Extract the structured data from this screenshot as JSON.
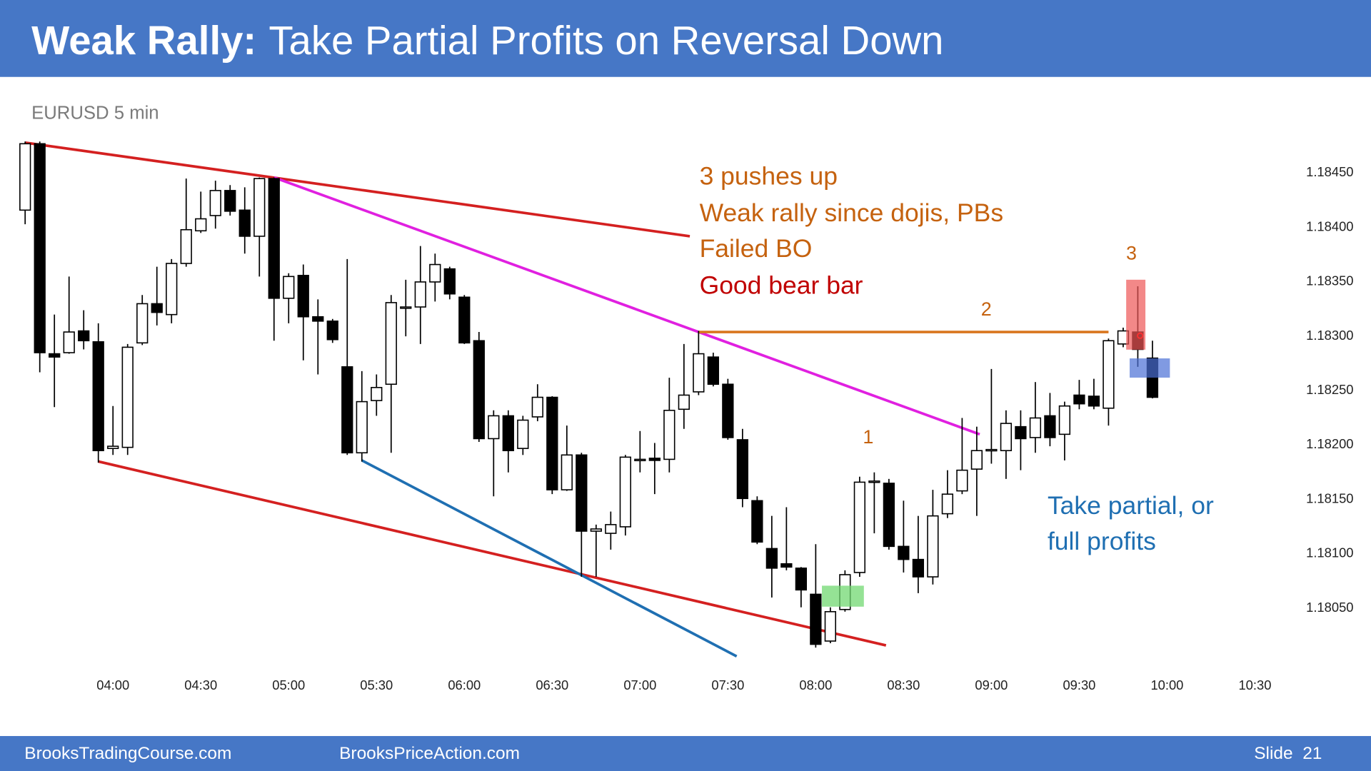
{
  "title": {
    "bold": "Weak Rally:",
    "rest": "Take Partial Profits on Reversal Down"
  },
  "chart_data": {
    "type": "candlestick",
    "subtitle": "EURUSD 5 min",
    "x": [
      "03:30",
      "03:35",
      "03:40",
      "03:45",
      "03:50",
      "03:55",
      "04:00",
      "04:05",
      "04:10",
      "04:15",
      "04:20",
      "04:25",
      "04:30",
      "04:35",
      "04:40",
      "04:45",
      "04:50",
      "04:55",
      "05:00",
      "05:05",
      "05:10",
      "05:15",
      "05:20",
      "05:25",
      "05:30",
      "05:35",
      "05:40",
      "05:45",
      "05:50",
      "05:55",
      "06:00",
      "06:05",
      "06:10",
      "06:15",
      "06:20",
      "06:25",
      "06:30",
      "06:35",
      "06:40",
      "06:45",
      "06:50",
      "06:55",
      "07:00",
      "07:05",
      "07:10",
      "07:15",
      "07:20",
      "07:25",
      "07:30",
      "07:35",
      "07:40",
      "07:45",
      "07:50",
      "07:55",
      "08:00",
      "08:05",
      "08:10",
      "08:15",
      "08:20",
      "08:25",
      "08:30",
      "08:35",
      "08:40",
      "08:45",
      "08:50",
      "08:55",
      "09:00",
      "09:05",
      "09:10",
      "09:15",
      "09:20",
      "09:25",
      "09:30",
      "09:35",
      "09:40",
      "09:45",
      "09:50",
      "09:55"
    ],
    "open": [
      1.18415,
      1.18476,
      1.18283,
      1.18284,
      1.18304,
      1.18294,
      1.18196,
      1.18197,
      1.18293,
      1.18329,
      1.18319,
      1.18366,
      1.18396,
      1.1841,
      1.18433,
      1.18415,
      1.18391,
      1.18444,
      1.18334,
      1.18355,
      1.18317,
      1.18313,
      1.18271,
      1.18192,
      1.1824,
      1.18255,
      1.18325,
      1.18326,
      1.18349,
      1.18361,
      1.18335,
      1.18295,
      1.18205,
      1.18226,
      1.18196,
      1.18225,
      1.18243,
      1.18158,
      1.1819,
      1.1812,
      1.18118,
      1.18124,
      1.18185,
      1.18187,
      1.18186,
      1.18232,
      1.18248,
      1.1828,
      1.18255,
      1.18204,
      1.18148,
      1.18104,
      1.1809,
      1.18086,
      1.18062,
      1.18019,
      1.18048,
      1.18082,
      1.18165,
      1.18164,
      1.18106,
      1.18094,
      1.18078,
      1.18136,
      1.18157,
      1.18177,
      1.18194,
      1.18194,
      1.18216,
      1.18206,
      1.18226,
      1.18209,
      1.18245,
      1.18244,
      1.18233,
      1.18292,
      1.18303,
      1.18279
    ],
    "high": [
      1.18478,
      1.18478,
      1.18319,
      1.18354,
      1.18323,
      1.18311,
      1.18235,
      1.18292,
      1.18337,
      1.18363,
      1.1837,
      1.18444,
      1.18432,
      1.18442,
      1.18438,
      1.18436,
      1.18445,
      1.18445,
      1.18357,
      1.18365,
      1.18333,
      1.18315,
      1.1837,
      1.18267,
      1.18264,
      1.18337,
      1.18351,
      1.18382,
      1.18375,
      1.18363,
      1.18337,
      1.18303,
      1.18231,
      1.18231,
      1.18226,
      1.18255,
      1.18244,
      1.18217,
      1.18192,
      1.18126,
      1.18138,
      1.1819,
      1.18212,
      1.18201,
      1.18261,
      1.18292,
      1.18304,
      1.18284,
      1.1826,
      1.18214,
      1.18152,
      1.18134,
      1.18142,
      1.18087,
      1.18108,
      1.1805,
      1.18084,
      1.1817,
      1.18174,
      1.18168,
      1.18148,
      1.18134,
      1.18158,
      1.18176,
      1.18224,
      1.18216,
      1.18269,
      1.18231,
      1.18231,
      1.18257,
      1.18247,
      1.18239,
      1.18259,
      1.1826,
      1.18297,
      1.18307,
      1.18345,
      1.18295
    ],
    "low": [
      1.18402,
      1.18266,
      1.18234,
      1.18283,
      1.18287,
      1.18183,
      1.1819,
      1.1819,
      1.18291,
      1.18309,
      1.18311,
      1.18363,
      1.18394,
      1.18398,
      1.1841,
      1.18375,
      1.18354,
      1.18295,
      1.18311,
      1.18277,
      1.18264,
      1.18293,
      1.1819,
      1.18184,
      1.18226,
      1.18192,
      1.18299,
      1.18292,
      1.18331,
      1.18333,
      1.18292,
      1.18202,
      1.18152,
      1.18174,
      1.1819,
      1.18221,
      1.18154,
      1.18157,
      1.18078,
      1.18078,
      1.18103,
      1.18116,
      1.18174,
      1.18154,
      1.18174,
      1.18214,
      1.18245,
      1.18253,
      1.18204,
      1.18142,
      1.18108,
      1.18059,
      1.18084,
      1.1805,
      1.18013,
      1.18017,
      1.18046,
      1.18078,
      1.18118,
      1.18103,
      1.18082,
      1.18063,
      1.18071,
      1.18132,
      1.18154,
      1.18134,
      1.18182,
      1.18168,
      1.18176,
      1.18192,
      1.18198,
      1.18185,
      1.18232,
      1.18232,
      1.18217,
      1.18289,
      1.18271,
      1.18242
    ],
    "close": [
      1.18476,
      1.18284,
      1.1828,
      1.18303,
      1.18295,
      1.18194,
      1.18198,
      1.18289,
      1.18329,
      1.18321,
      1.18366,
      1.18397,
      1.18407,
      1.18433,
      1.18414,
      1.18391,
      1.18444,
      1.18334,
      1.18354,
      1.18317,
      1.18313,
      1.18296,
      1.18192,
      1.18239,
      1.18252,
      1.1833,
      1.18326,
      1.18349,
      1.18365,
      1.18338,
      1.18293,
      1.18205,
      1.18226,
      1.18194,
      1.18222,
      1.18243,
      1.18158,
      1.1819,
      1.1812,
      1.18122,
      1.18126,
      1.18188,
      1.18186,
      1.18185,
      1.18231,
      1.18245,
      1.18283,
      1.18255,
      1.18206,
      1.1815,
      1.1811,
      1.18086,
      1.18087,
      1.18066,
      1.18016,
      1.18046,
      1.1808,
      1.18165,
      1.18166,
      1.18106,
      1.18094,
      1.18078,
      1.18134,
      1.18154,
      1.18176,
      1.18194,
      1.18195,
      1.18219,
      1.18205,
      1.18224,
      1.18206,
      1.18235,
      1.18237,
      1.18235,
      1.18295,
      1.18304,
      1.18287,
      1.18243
    ],
    "up_color": "#ffffff",
    "down_color": "#000000",
    "xlim": [
      "03:25",
      "10:35"
    ],
    "xticks": [
      "04:00",
      "04:30",
      "05:00",
      "05:30",
      "06:00",
      "06:30",
      "07:00",
      "07:30",
      "08:00",
      "08:30",
      "09:00",
      "09:30",
      "10:00",
      "10:30"
    ],
    "ylim": [
      1.18,
      1.1849
    ],
    "yticks": [
      {
        "value": 1.1805,
        "label": "1.18050"
      },
      {
        "value": 1.181,
        "label": "1.18100"
      },
      {
        "value": 1.1815,
        "label": "1.18150"
      },
      {
        "value": 1.182,
        "label": "1.18200"
      },
      {
        "value": 1.1825,
        "label": "1.18250"
      },
      {
        "value": 1.183,
        "label": "1.18300"
      },
      {
        "value": 1.1835,
        "label": "1.18350"
      },
      {
        "value": 1.184,
        "label": "1.18400"
      },
      {
        "value": 1.1845,
        "label": "1.18450"
      }
    ],
    "trendlines": [
      {
        "color": "#d42020",
        "x": [
          "03:30",
          "07:17"
        ],
        "y": [
          1.18477,
          1.18391
        ]
      },
      {
        "color": "#d42020",
        "x": [
          "03:55",
          "08:24"
        ],
        "y": [
          1.18184,
          1.18015
        ]
      },
      {
        "color": "#1f6fb2",
        "x": [
          "05:25",
          "07:33"
        ],
        "y": [
          1.18185,
          1.18005
        ]
      },
      {
        "color": "#e020e0",
        "x": [
          "04:55",
          "08:56"
        ],
        "y": [
          1.18445,
          1.18209
        ]
      },
      {
        "color": "#d9761e",
        "x": [
          "07:20",
          "09:40"
        ],
        "y": [
          1.18303,
          1.18303
        ]
      }
    ],
    "annotations": [
      "3 pushes up",
      "Weak rally since dojis, PBs",
      "Failed BO",
      "Good bear bar",
      "1",
      "2",
      "3",
      "Take partial, or",
      "full profits"
    ]
  },
  "footer": {
    "left": "BrooksTradingCourse.com",
    "center": "BrooksPriceAction.com",
    "slide": "Slide  21"
  }
}
